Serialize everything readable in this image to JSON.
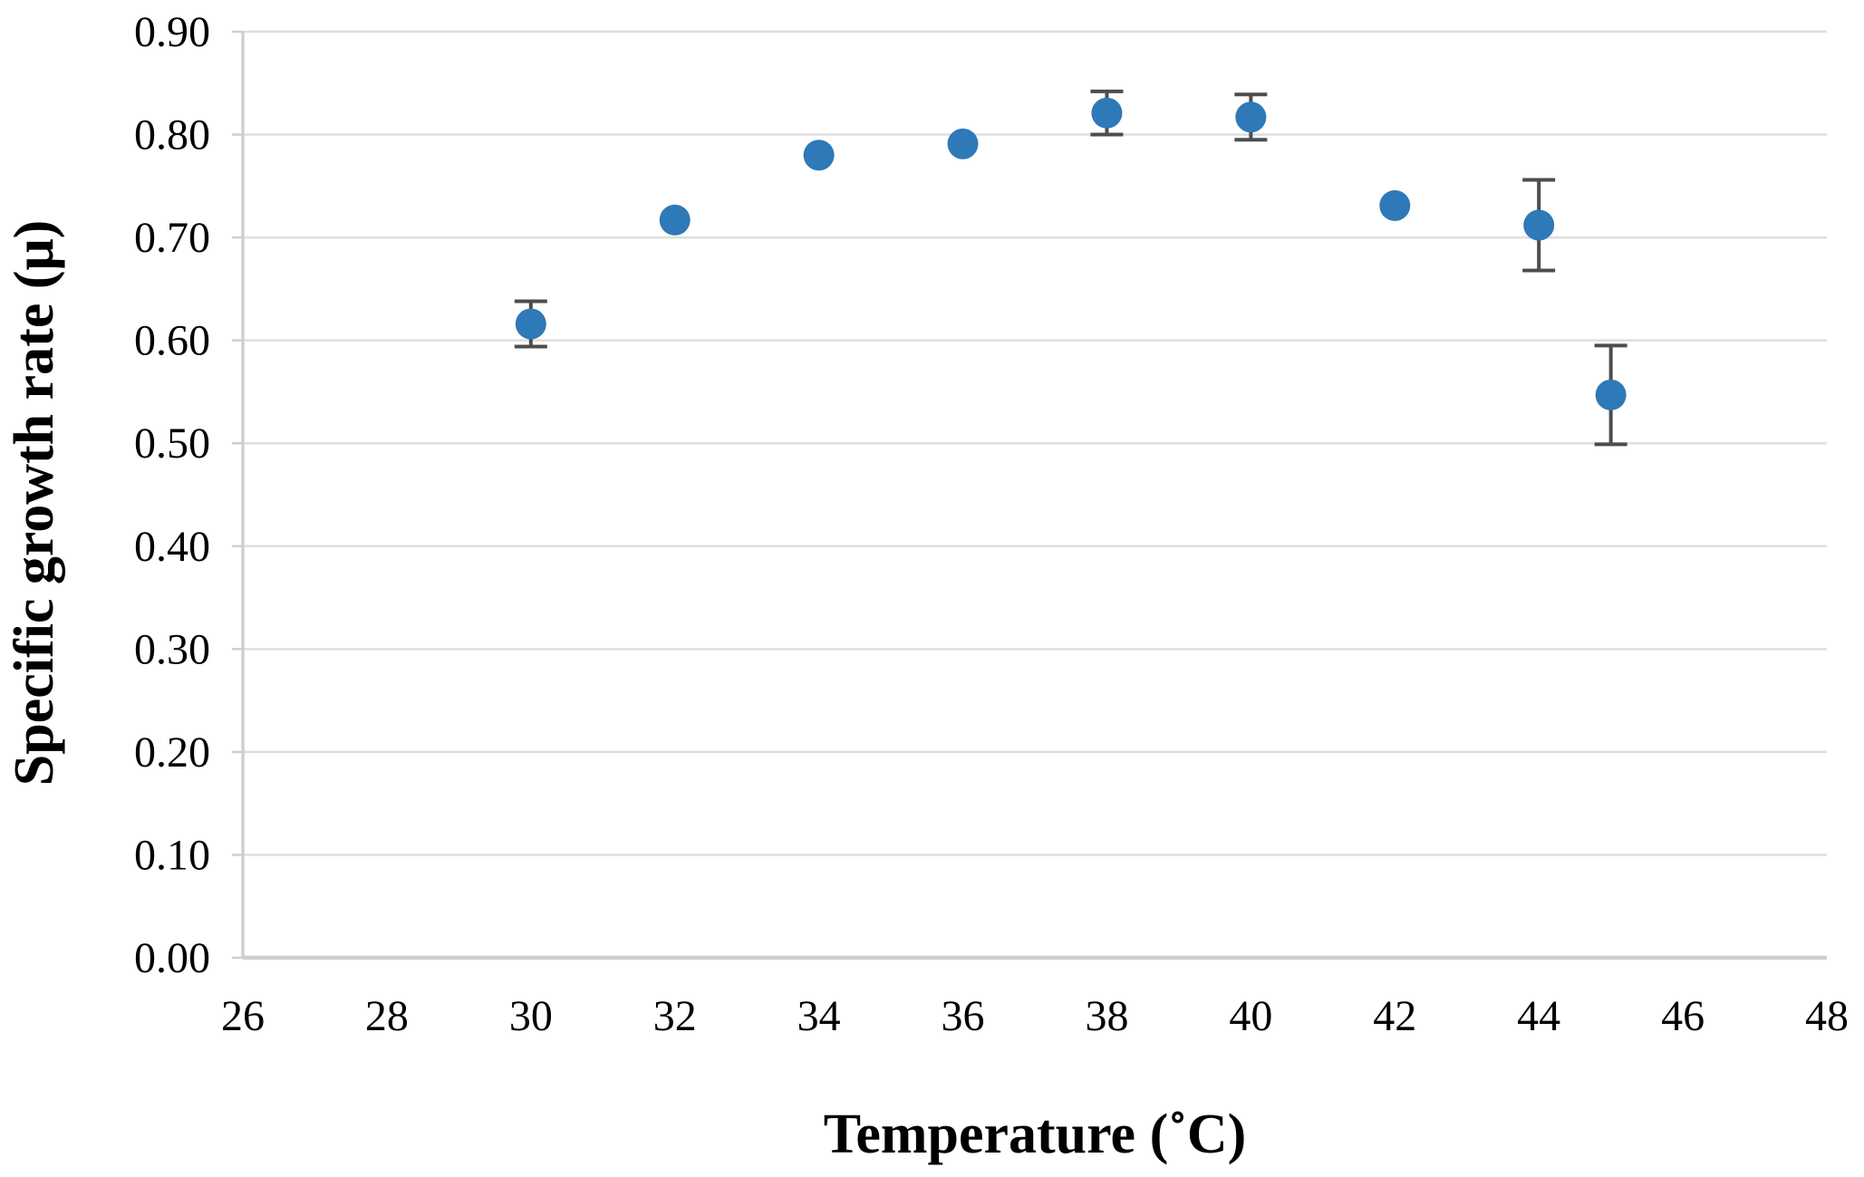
{
  "chart_data": {
    "type": "scatter",
    "title": "",
    "xlabel": "Temperature (˚C)",
    "ylabel": "Specific growth rate (μ)",
    "xlim": [
      26,
      48
    ],
    "ylim": [
      0.0,
      0.9
    ],
    "x_ticks": [
      26,
      28,
      30,
      32,
      34,
      36,
      38,
      40,
      42,
      44,
      46,
      48
    ],
    "y_ticks": [
      "0.00",
      "0.10",
      "0.20",
      "0.30",
      "0.40",
      "0.50",
      "0.60",
      "0.70",
      "0.80",
      "0.90"
    ],
    "grid": "horizontal",
    "legend": "none",
    "marker": {
      "shape": "circle",
      "color": "#2e79b7",
      "radius_px": 17
    },
    "error_bars": {
      "color": "#4d4d4d"
    },
    "colors": {
      "gridline": "#dedede",
      "axis_line": "#cfcfcf",
      "text": "#000000"
    },
    "series": [
      {
        "name": "Specific growth rate",
        "points": [
          {
            "x": 30,
            "y": 0.616,
            "yerr": 0.022
          },
          {
            "x": 32,
            "y": 0.717,
            "yerr": 0
          },
          {
            "x": 34,
            "y": 0.78,
            "yerr": 0
          },
          {
            "x": 36,
            "y": 0.791,
            "yerr": 0
          },
          {
            "x": 38,
            "y": 0.821,
            "yerr": 0.021
          },
          {
            "x": 40,
            "y": 0.817,
            "yerr": 0.022
          },
          {
            "x": 42,
            "y": 0.731,
            "yerr": 0
          },
          {
            "x": 44,
            "y": 0.712,
            "yerr": 0.044
          },
          {
            "x": 45,
            "y": 0.547,
            "yerr": 0.048
          }
        ]
      }
    ]
  }
}
